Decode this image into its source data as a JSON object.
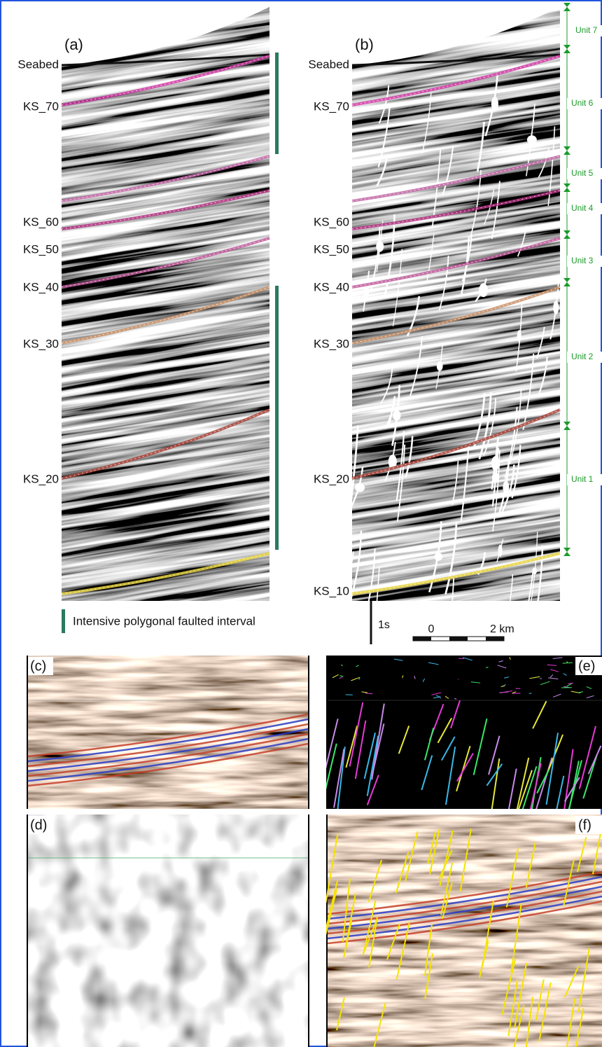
{
  "figure": {
    "panels": {
      "a": {
        "label": "(a)",
        "horizons": [
          "Seabed",
          "KS_70",
          "KS_60",
          "KS_50",
          "KS_40",
          "KS_30",
          "KS_20"
        ]
      },
      "b": {
        "label": "(b)",
        "horizons": [
          "Seabed",
          "KS_70",
          "KS_60",
          "KS_50",
          "KS_40",
          "KS_30",
          "KS_20",
          "KS_10"
        ]
      },
      "c": {
        "label": "(c)"
      },
      "d": {
        "label": "(d)"
      },
      "e": {
        "label": "(e)"
      },
      "f": {
        "label": "(f)"
      }
    },
    "units": [
      "Unit 7",
      "Unit 6",
      "Unit 5",
      "Unit 4",
      "Unit 3",
      "Unit 2",
      "Unit 1"
    ],
    "legend": "Intensive polygonal faulted interval",
    "scale": {
      "time": "1s",
      "distance_start": "0",
      "distance_end": "2 km"
    }
  }
}
